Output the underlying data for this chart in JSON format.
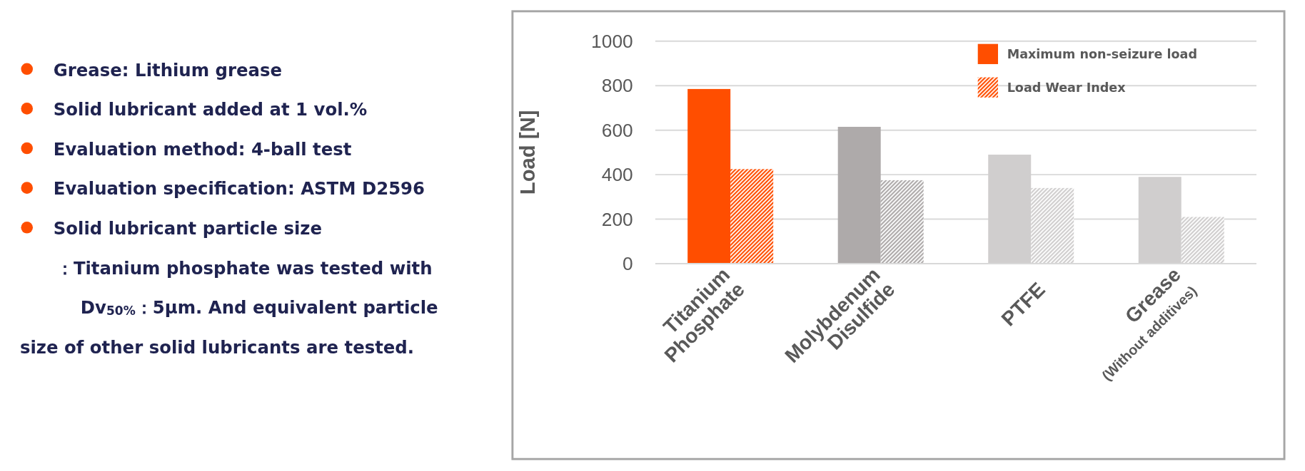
{
  "chart_data": {
    "type": "bar",
    "categories": [
      "Titanium\nPhosphate",
      "Molybdenum\nDisulfide",
      "PTFE",
      "Grease\n$_{(Without additives)}$"
    ],
    "ylabel": "Load [N]",
    "series": [
      {
        "name": "Maximum non-seizure load",
        "color": "#ff4e00",
        "colors": [
          "#ff4e00",
          "#aeaaaa",
          "#d0cece",
          "#d0cece"
        ],
        "values": [
          785,
          615,
          490,
          390
        ]
      },
      {
        "name": "Load Wear Index",
        "color": "#ff4e00",
        "colors": [
          "#ff4e00",
          "#aeaaaa",
          "#d0cece",
          "#d0cece"
        ],
        "values": [
          425,
          375,
          340,
          210
        ]
      }
    ],
    "ylim": [
      0,
      1000
    ],
    "yticks": [
      0,
      200,
      400,
      600,
      800,
      1000
    ],
    "grid": "y",
    "legend": "top right",
    "annotations": [
      "Grease: Lithium grease",
      "Solid lubricant added at 1 vol.%",
      "Evaluation method: 4-ball test",
      "Evaluation specification: ASTM D2596",
      "Solid lubricant particle size\n      ：Titanium phosphate was tested with\n          Dv$_{50%}$：5μm. And equivalent particle\nsize of other solid lubricants are tested."
    ]
  }
}
